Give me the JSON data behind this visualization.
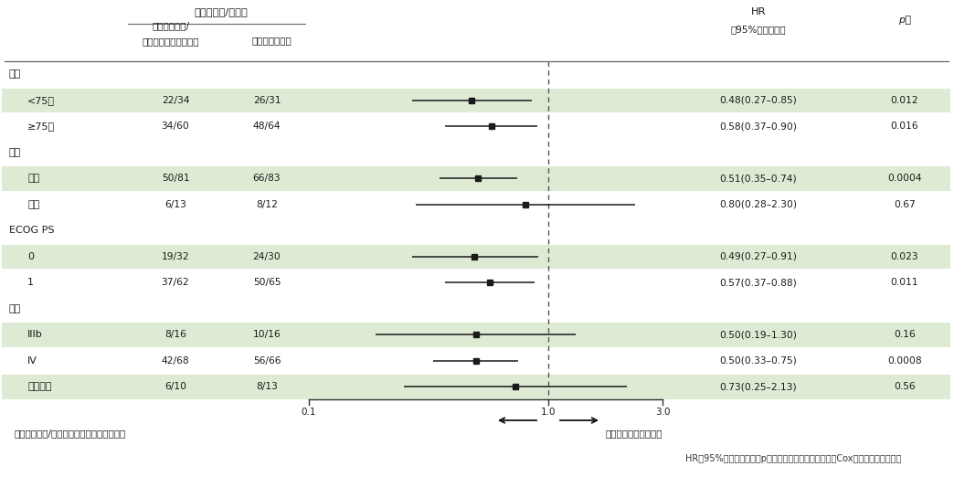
{
  "rows": [
    {
      "label": "年齢",
      "indent": false,
      "group_header": true,
      "arm1": "",
      "arm2": "",
      "hr": null,
      "ci_lo": null,
      "ci_hi": null,
      "p": "",
      "shaded": false
    },
    {
      "label": "<75歳",
      "indent": true,
      "group_header": false,
      "arm1": "22/34",
      "arm2": "26/31",
      "hr": 0.48,
      "ci_lo": 0.27,
      "ci_hi": 0.85,
      "p": "0.012",
      "shaded": true
    },
    {
      "label": "≥75歳",
      "indent": true,
      "group_header": false,
      "arm1": "34/60",
      "arm2": "48/64",
      "hr": 0.58,
      "ci_lo": 0.37,
      "ci_hi": 0.9,
      "p": "0.016",
      "shaded": false
    },
    {
      "label": "性別",
      "indent": false,
      "group_header": true,
      "arm1": "",
      "arm2": "",
      "hr": null,
      "ci_lo": null,
      "ci_hi": null,
      "p": "",
      "shaded": false
    },
    {
      "label": "男性",
      "indent": true,
      "group_header": false,
      "arm1": "50/81",
      "arm2": "66/83",
      "hr": 0.51,
      "ci_lo": 0.35,
      "ci_hi": 0.74,
      "p": "0.0004",
      "shaded": true
    },
    {
      "label": "女性",
      "indent": true,
      "group_header": false,
      "arm1": "6/13",
      "arm2": "8/12",
      "hr": 0.8,
      "ci_lo": 0.28,
      "ci_hi": 2.3,
      "p": "0.67",
      "shaded": false
    },
    {
      "label": "ECOG PS",
      "indent": false,
      "group_header": true,
      "arm1": "",
      "arm2": "",
      "hr": null,
      "ci_lo": null,
      "ci_hi": null,
      "p": "",
      "shaded": false
    },
    {
      "label": "0",
      "indent": true,
      "group_header": false,
      "arm1": "19/32",
      "arm2": "24/30",
      "hr": 0.49,
      "ci_lo": 0.27,
      "ci_hi": 0.91,
      "p": "0.023",
      "shaded": true
    },
    {
      "label": "1",
      "indent": true,
      "group_header": false,
      "arm1": "37/62",
      "arm2": "50/65",
      "hr": 0.57,
      "ci_lo": 0.37,
      "ci_hi": 0.88,
      "p": "0.011",
      "shaded": false
    },
    {
      "label": "病期",
      "indent": false,
      "group_header": true,
      "arm1": "",
      "arm2": "",
      "hr": null,
      "ci_lo": null,
      "ci_hi": null,
      "p": "",
      "shaded": false
    },
    {
      "label": "IIIb",
      "indent": true,
      "group_header": false,
      "arm1": "8/16",
      "arm2": "10/16",
      "hr": 0.5,
      "ci_lo": 0.19,
      "ci_hi": 1.3,
      "p": "0.16",
      "shaded": true
    },
    {
      "label": "IV",
      "indent": true,
      "group_header": false,
      "arm1": "42/68",
      "arm2": "56/66",
      "hr": 0.5,
      "ci_lo": 0.33,
      "ci_hi": 0.75,
      "p": "0.0008",
      "shaded": false
    },
    {
      "label": "術後再発",
      "indent": true,
      "group_header": false,
      "arm1": "6/10",
      "arm2": "8/13",
      "hr": 0.73,
      "ci_lo": 0.25,
      "ci_hi": 2.13,
      "p": "0.56",
      "shaded": true
    }
  ],
  "col_header_event": "イベント数/症例数",
  "col_header_arm1_l1": "アブラキサン/",
  "col_header_arm1_l2": "カルボプラチン併用群",
  "col_header_arm2": "ドセタキセル群",
  "col_header_hr_l1": "HR",
  "col_header_hr_l2": "（95%信頼区間）",
  "col_header_p": "p値",
  "xmin": 0.1,
  "xmax": 3.0,
  "ref_line": 1.0,
  "log_ticks": [
    0.1,
    1.0,
    3.0
  ],
  "log_tick_labels": [
    "0.1",
    "1.0",
    "3.0"
  ],
  "arrow_left_label": "アブラキサン/カルボプラチン併用群が良好",
  "arrow_right_label": "ドセタキセル群が良好",
  "footnote": "HR（95%信頼区間）及びp値：群のみを説明変数とするCox比例ハザードモデル",
  "shaded_color": "#deebd4",
  "background_color": "#ffffff",
  "marker_color": "#1a1a1a",
  "line_color": "#1a1a1a",
  "text_color": "#1a1a1a",
  "header_line_color": "#666666"
}
